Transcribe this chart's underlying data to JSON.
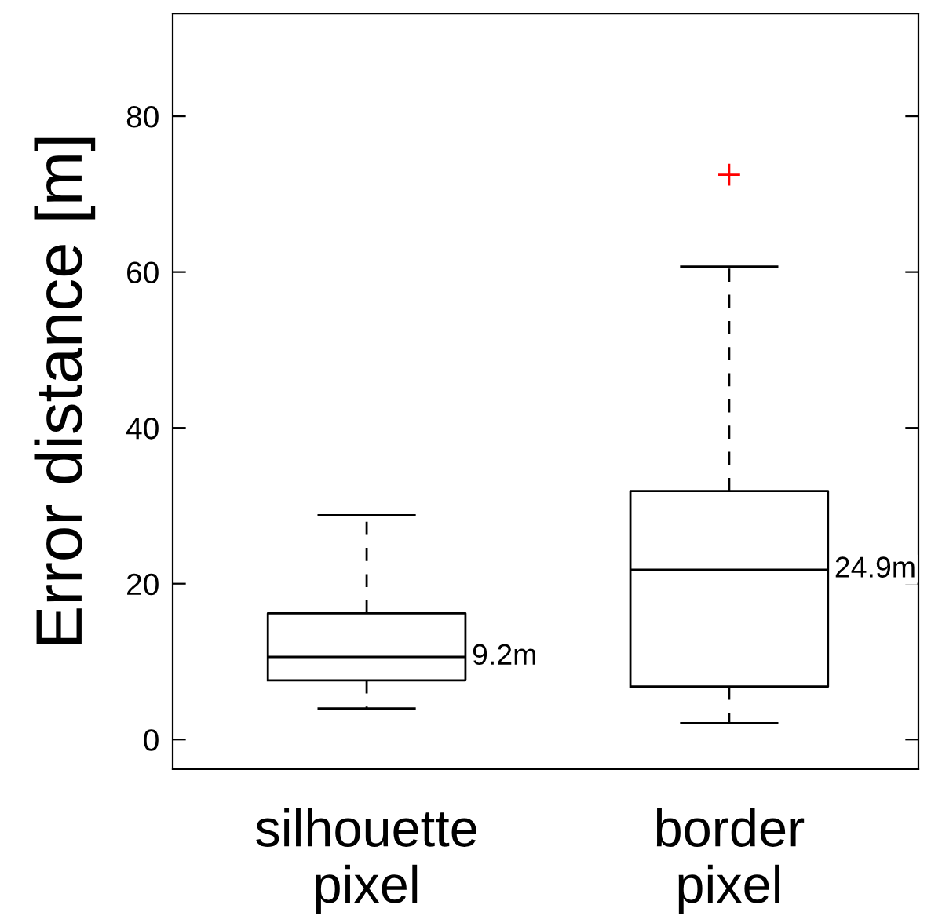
{
  "chart_data": {
    "type": "box",
    "ylabel": "Error distance [m]",
    "categories": [
      "silhouette\npixel",
      "border\npixel"
    ],
    "boxes": [
      {
        "low": 4.0,
        "q1": 7.6,
        "median": 10.6,
        "q3": 16.2,
        "high": 28.8
      },
      {
        "low": 2.1,
        "q1": 6.8,
        "median": 21.8,
        "q3": 31.9,
        "high": 60.7,
        "outliers": [
          72.5
        ]
      }
    ],
    "color": "#000000",
    "ylim": [
      -3.8,
      93.2
    ],
    "yticks": [
      0,
      20,
      40,
      60,
      80
    ],
    "annotations": [
      "9.2m",
      "24.9m"
    ],
    "grid": false,
    "legend": false
  }
}
